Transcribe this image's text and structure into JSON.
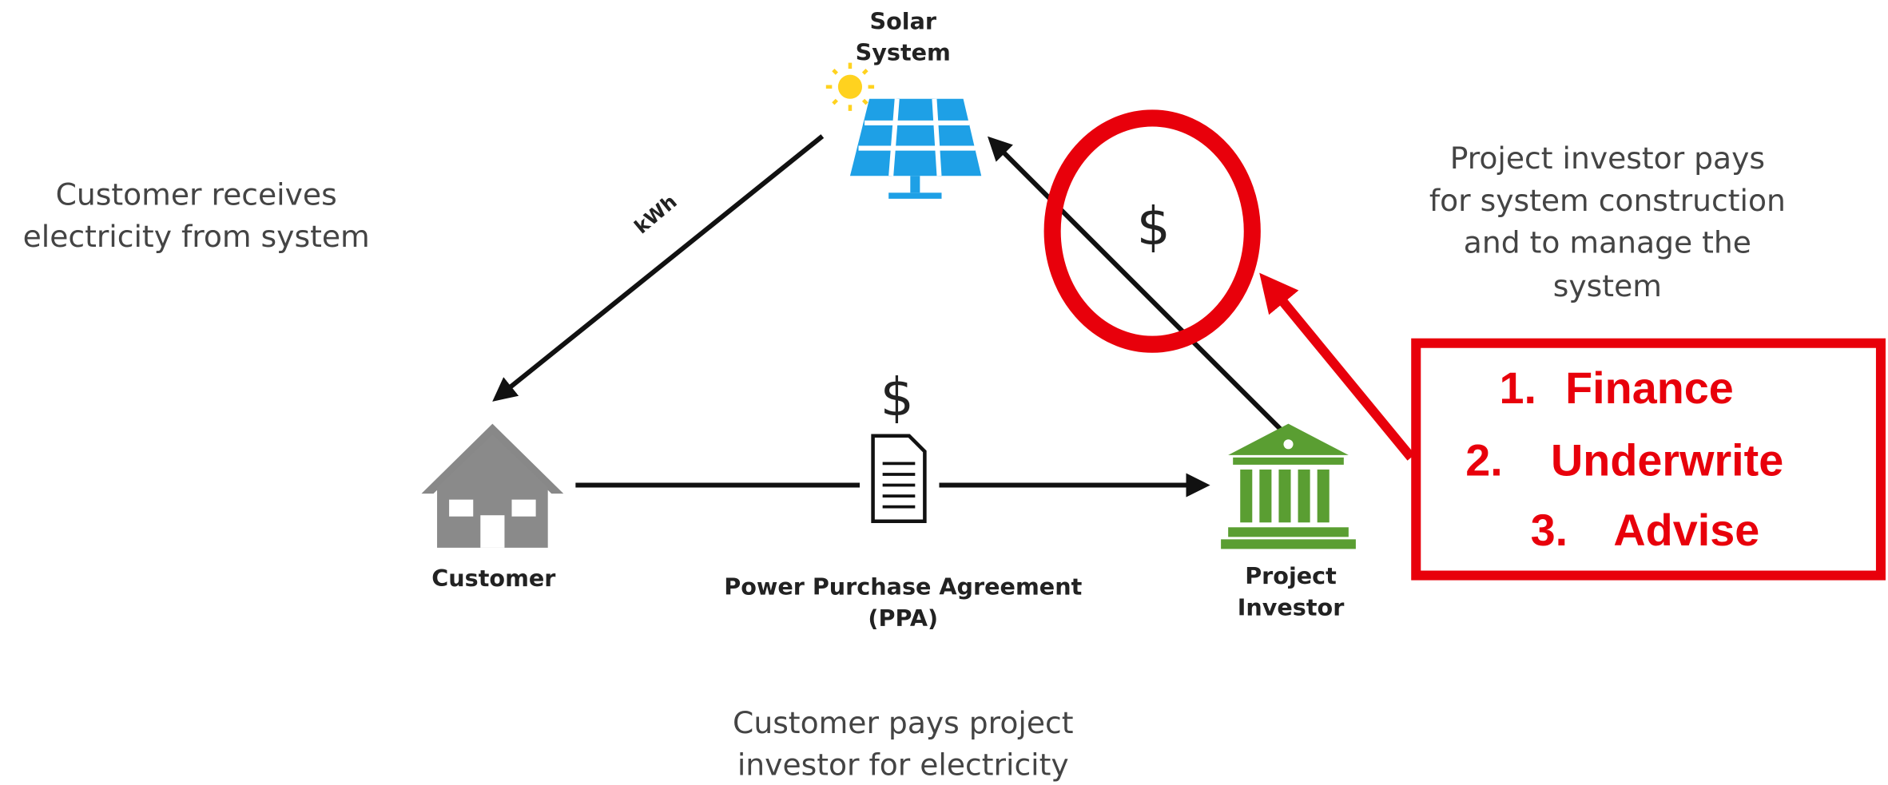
{
  "nodes": [
    {
      "label": [
        "Solar",
        "System"
      ]
    },
    {
      "label": [
        "Customer"
      ]
    },
    {
      "label": [
        "Project",
        "Investor"
      ]
    }
  ],
  "edges": {
    "kwh": "kWh",
    "investor_payment": "$",
    "customer_payment": "$"
  },
  "agreement": [
    "Power Purchase Agreement",
    "(PPA)"
  ],
  "descriptions": {
    "customer": [
      "Customer receives",
      "electricity from system"
    ],
    "investor": [
      "Project investor pays",
      "for system construction",
      "and to manage the",
      "system"
    ],
    "payment": [
      "Customer pays project",
      "investor for electricity"
    ]
  },
  "callout": [
    {
      "number": "1.",
      "text": "Finance"
    },
    {
      "number": "2.",
      "text": "Underwrite"
    },
    {
      "number": "3.",
      "text": "Advise"
    }
  ]
}
